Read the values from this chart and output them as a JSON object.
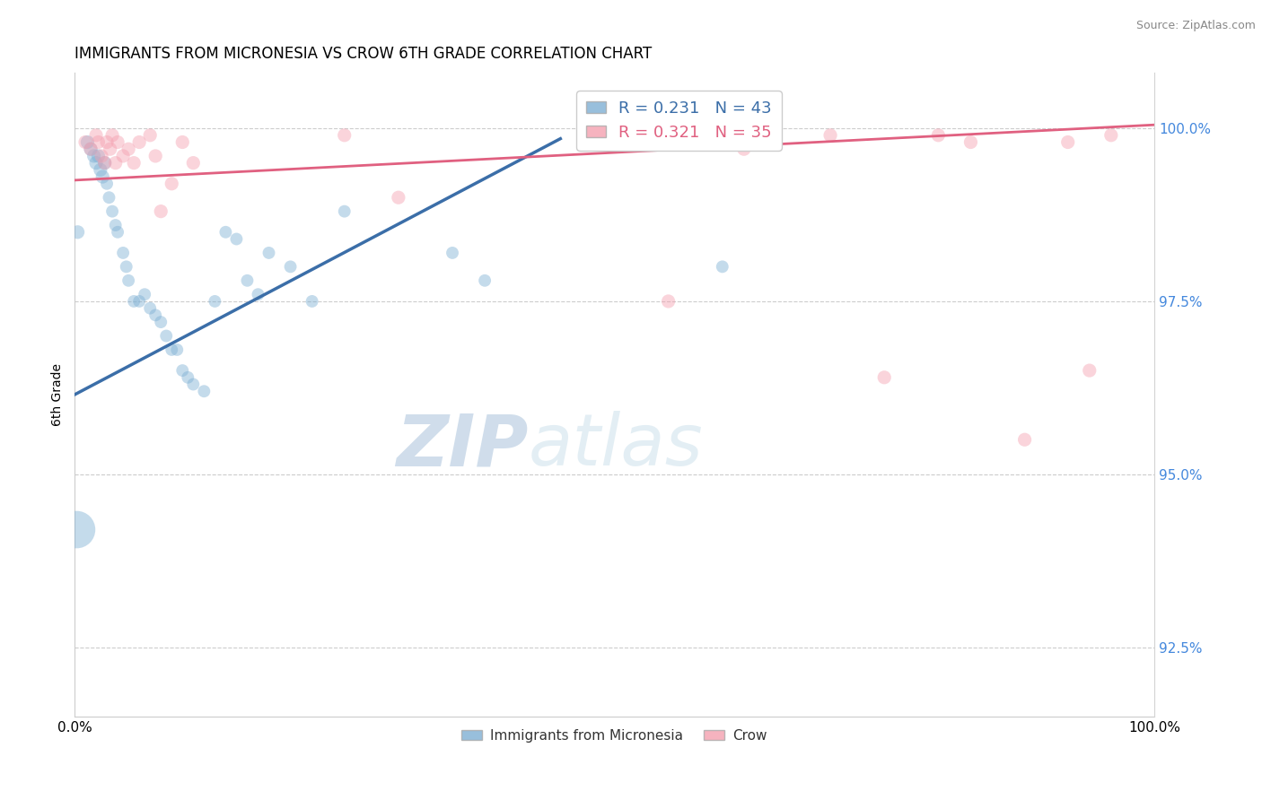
{
  "title": "IMMIGRANTS FROM MICRONESIA VS CROW 6TH GRADE CORRELATION CHART",
  "source": "Source: ZipAtlas.com",
  "ylabel": "6th Grade",
  "ytick_labels": [
    "92.5%",
    "95.0%",
    "97.5%",
    "100.0%"
  ],
  "ytick_values": [
    92.5,
    95.0,
    97.5,
    100.0
  ],
  "xmin": 0.0,
  "xmax": 100.0,
  "ymin": 91.5,
  "ymax": 100.8,
  "blue_R": "0.231",
  "blue_N": "43",
  "pink_R": "0.321",
  "pink_N": "35",
  "blue_color": "#7EB0D4",
  "pink_color": "#F4A0B0",
  "blue_line_color": "#3B6EA8",
  "pink_line_color": "#E06080",
  "watermark_zip": "ZIP",
  "watermark_atlas": "atlas",
  "blue_trend_x0": 0.0,
  "blue_trend_x1": 45.0,
  "blue_trend_y0": 96.15,
  "blue_trend_y1": 99.85,
  "pink_trend_x0": 0.0,
  "pink_trend_x1": 100.0,
  "pink_trend_y0": 99.25,
  "pink_trend_y1": 100.05,
  "blue_points_x": [
    1.2,
    1.5,
    1.8,
    2.0,
    2.2,
    2.4,
    2.6,
    2.8,
    3.0,
    3.2,
    3.5,
    3.8,
    4.0,
    4.5,
    4.8,
    5.0,
    5.5,
    6.0,
    6.5,
    7.0,
    7.5,
    8.0,
    8.5,
    9.0,
    9.5,
    10.0,
    10.5,
    11.0,
    12.0,
    13.0,
    14.0,
    15.0,
    16.0,
    17.0,
    18.0,
    20.0,
    22.0,
    25.0,
    35.0,
    38.0,
    60.0,
    0.3,
    0.2
  ],
  "blue_points_y": [
    99.8,
    99.7,
    99.6,
    99.5,
    99.6,
    99.4,
    99.3,
    99.5,
    99.2,
    99.0,
    98.8,
    98.6,
    98.5,
    98.2,
    98.0,
    97.8,
    97.5,
    97.5,
    97.6,
    97.4,
    97.3,
    97.2,
    97.0,
    96.8,
    96.8,
    96.5,
    96.4,
    96.3,
    96.2,
    97.5,
    98.5,
    98.4,
    97.8,
    97.6,
    98.2,
    98.0,
    97.5,
    98.8,
    98.2,
    97.8,
    98.0,
    98.5,
    94.2
  ],
  "blue_sizes": [
    120,
    120,
    120,
    120,
    120,
    120,
    120,
    120,
    100,
    100,
    100,
    100,
    100,
    100,
    100,
    100,
    100,
    100,
    100,
    100,
    100,
    100,
    100,
    100,
    100,
    100,
    100,
    100,
    100,
    100,
    100,
    100,
    100,
    100,
    100,
    100,
    100,
    100,
    100,
    100,
    100,
    120,
    900
  ],
  "pink_points_x": [
    1.0,
    1.5,
    2.0,
    2.2,
    2.5,
    2.8,
    3.0,
    3.3,
    3.5,
    3.8,
    4.0,
    4.5,
    5.0,
    5.5,
    6.0,
    7.0,
    7.5,
    8.0,
    9.0,
    10.0,
    11.0,
    25.0,
    30.0,
    50.0,
    55.0,
    57.0,
    62.0,
    70.0,
    75.0,
    80.0,
    83.0,
    88.0,
    92.0,
    94.0,
    96.0
  ],
  "pink_points_y": [
    99.8,
    99.7,
    99.9,
    99.8,
    99.6,
    99.5,
    99.8,
    99.7,
    99.9,
    99.5,
    99.8,
    99.6,
    99.7,
    99.5,
    99.8,
    99.9,
    99.6,
    98.8,
    99.2,
    99.8,
    99.5,
    99.9,
    99.0,
    99.8,
    97.5,
    99.8,
    99.7,
    99.9,
    96.4,
    99.9,
    99.8,
    95.5,
    99.8,
    96.5,
    99.9
  ],
  "pink_sizes": [
    120,
    120,
    120,
    120,
    120,
    120,
    120,
    120,
    120,
    120,
    120,
    120,
    120,
    120,
    120,
    120,
    120,
    120,
    120,
    120,
    120,
    120,
    120,
    120,
    120,
    120,
    120,
    120,
    120,
    120,
    120,
    120,
    120,
    120,
    120
  ]
}
